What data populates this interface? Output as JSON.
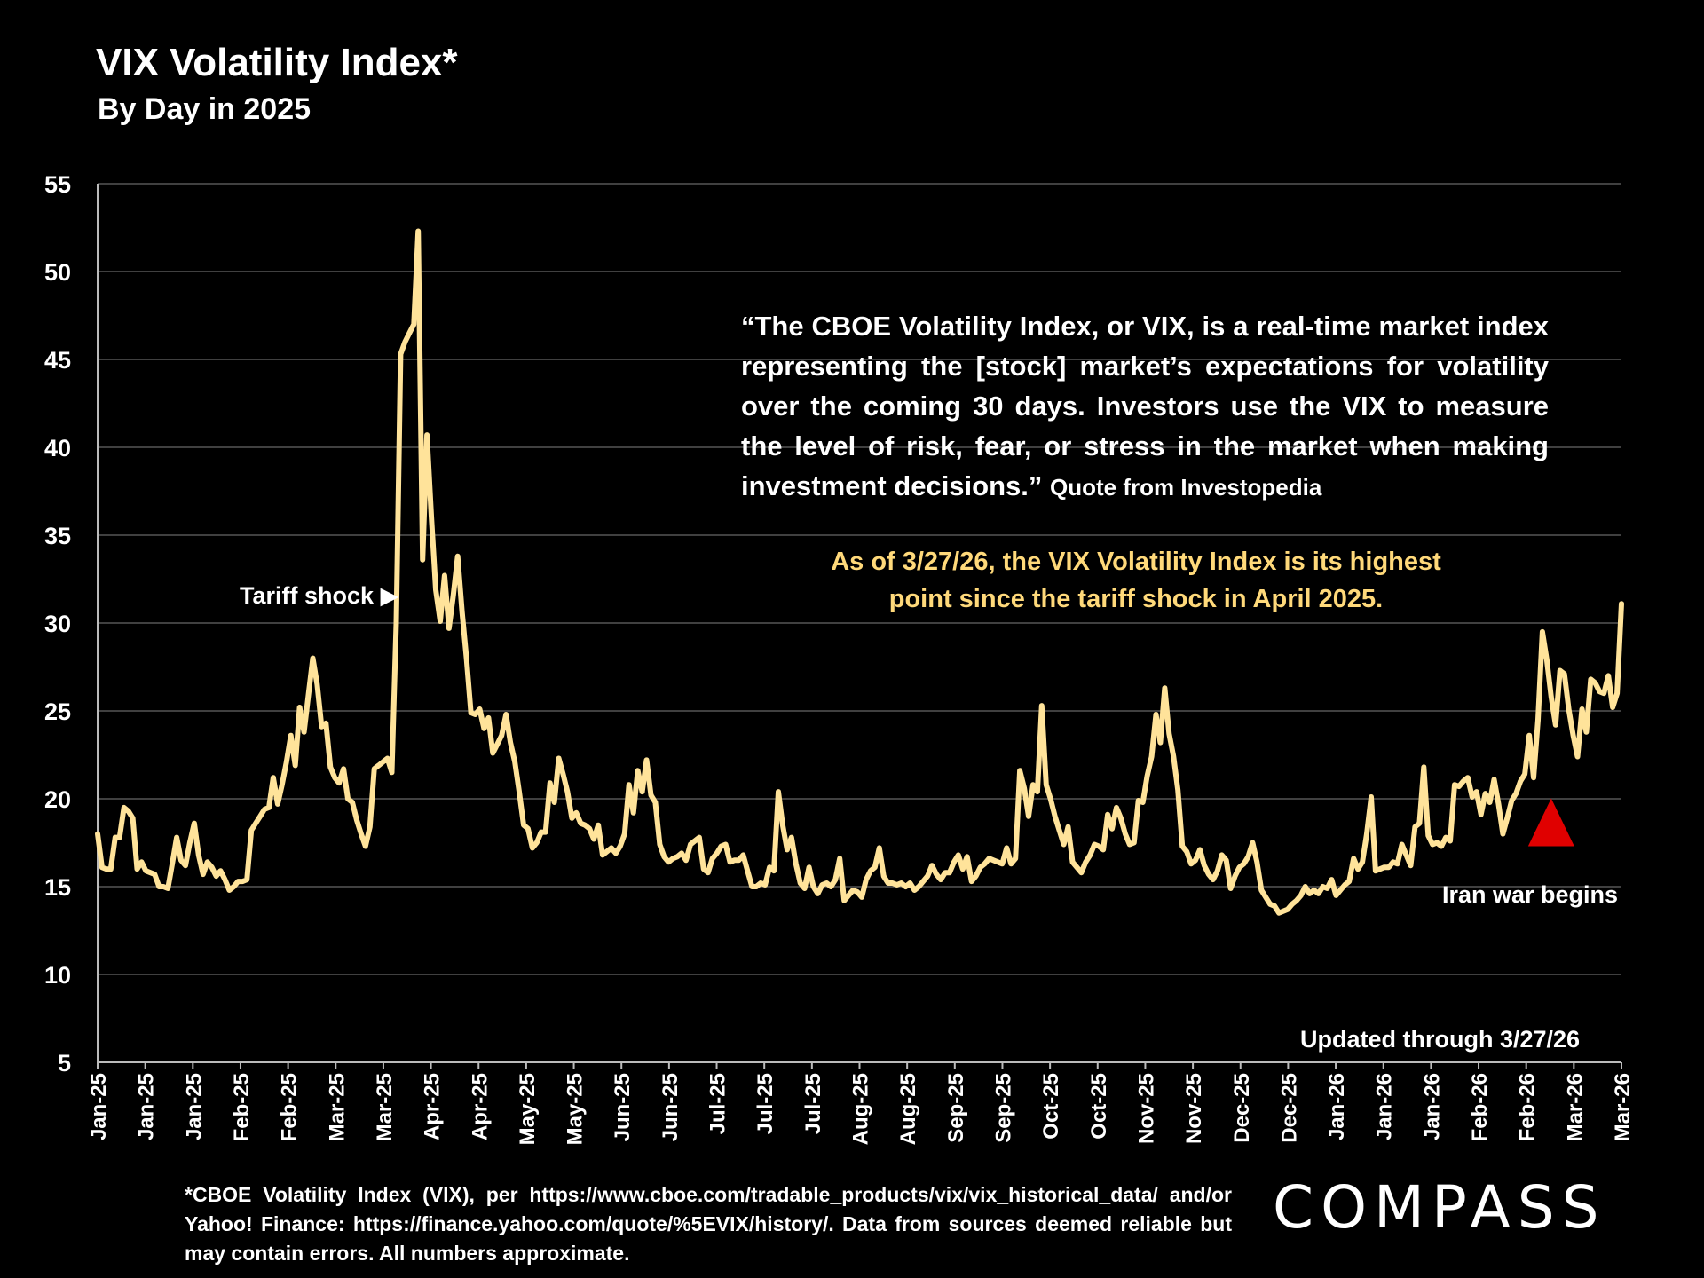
{
  "header": {
    "title": "VIX Volatility Index*",
    "subtitle": "By Day in 2025"
  },
  "quote": {
    "text": "“The CBOE Volatility Index, or VIX, is a real-time market index representing the [stock] market’s expectations for volatility over the coming 30 days. Investors use the VIX to measure the level of risk, fear, or stress in the market when making investment decisions.”",
    "source": "Quote from Investopedia"
  },
  "highlight": {
    "line1": "As of 3/27/26, the VIX Volatility Index is its highest",
    "line2": "point since the tariff shock in April 2025."
  },
  "annotations": {
    "tariff_shock": "Tariff shock ▶",
    "iran_war": "Iran war begins"
  },
  "updated": "Updated through 3/27/26",
  "footnote": "*CBOE Volatility Index (VIX), per https://www.cboe.com/tradable_products/vix/vix_historical_data/ and/or Yahoo! Finance: https://finance.yahoo.com/quote/%5EVIX/history/. Data from sources deemed reliable but may contain errors. All numbers approximate.",
  "logo": "COMPASS",
  "colors": {
    "line": "#ffe39a",
    "marker": "#e00000",
    "grid": "#555555",
    "highlight": "#ffd97a"
  },
  "chart_data": {
    "type": "line",
    "title": "VIX Volatility Index*",
    "subtitle": "By Day in 2025",
    "ylim": [
      5,
      55
    ],
    "yticks": [
      5,
      10,
      15,
      20,
      25,
      30,
      35,
      40,
      45,
      50,
      55
    ],
    "grid": true,
    "x_tick_labels": [
      "Jan-25",
      "Jan-25",
      "Jan-25",
      "Feb-25",
      "Feb-25",
      "Mar-25",
      "Mar-25",
      "Apr-25",
      "Apr-25",
      "May-25",
      "May-25",
      "Jun-25",
      "Jun-25",
      "Jul-25",
      "Jul-25",
      "Jul-25",
      "Aug-25",
      "Aug-25",
      "Sep-25",
      "Sep-25",
      "Oct-25",
      "Oct-25",
      "Nov-25",
      "Nov-25",
      "Dec-25",
      "Dec-25",
      "Jan-26",
      "Jan-26",
      "Jan-26",
      "Feb-26",
      "Feb-26",
      "Mar-26",
      "Mar-26"
    ],
    "series": [
      {
        "values": [
          18.0,
          16.1,
          16.0,
          16.0,
          17.8,
          17.8,
          19.5,
          19.3,
          18.9,
          16.0,
          16.4,
          15.9,
          15.8,
          15.7,
          15.0,
          15.0,
          14.9,
          16.3,
          17.8,
          16.5,
          16.2,
          17.5,
          18.6,
          16.8,
          15.7,
          16.4,
          16.1,
          15.6,
          15.9,
          15.4,
          14.8,
          15.0,
          15.3,
          15.3,
          15.4,
          18.2,
          18.6,
          19.0,
          19.4,
          19.5,
          21.2,
          19.7,
          20.8,
          22.1,
          23.6,
          21.9,
          25.2,
          23.8,
          25.9,
          28.0,
          26.5,
          24.1,
          24.3,
          21.8,
          21.2,
          20.9,
          21.7,
          20.0,
          19.8,
          18.8,
          18.0,
          17.3,
          18.4,
          21.7,
          21.9,
          22.1,
          22.3,
          21.5,
          30.0,
          45.3,
          46.0,
          46.5,
          47.0,
          52.3,
          33.6,
          40.7,
          36.0,
          31.9,
          30.1,
          32.7,
          29.7,
          31.6,
          33.8,
          30.6,
          28.0,
          24.9,
          24.8,
          25.1,
          24.0,
          24.6,
          22.6,
          23.1,
          23.6,
          24.8,
          23.2,
          22.1,
          20.4,
          18.5,
          18.3,
          17.2,
          17.5,
          18.1,
          18.1,
          20.9,
          19.8,
          22.3,
          21.4,
          20.4,
          18.9,
          19.2,
          18.6,
          18.5,
          18.3,
          17.7,
          18.5,
          16.8,
          17.0,
          17.2,
          16.9,
          17.3,
          18.0,
          20.8,
          19.2,
          21.6,
          20.4,
          22.2,
          20.2,
          19.8,
          17.4,
          16.7,
          16.4,
          16.6,
          16.7,
          16.9,
          16.5,
          17.4,
          17.6,
          17.8,
          16.0,
          15.8,
          16.6,
          16.9,
          17.3,
          17.4,
          16.4,
          16.5,
          16.5,
          16.8,
          15.9,
          15.0,
          15.0,
          15.2,
          15.1,
          16.1,
          15.9,
          20.4,
          18.5,
          17.1,
          17.8,
          16.3,
          15.2,
          14.9,
          16.1,
          15.0,
          14.6,
          15.1,
          15.2,
          15.0,
          15.4,
          16.6,
          14.2,
          14.5,
          14.8,
          14.7,
          14.4,
          15.4,
          15.9,
          16.1,
          17.2,
          15.6,
          15.2,
          15.2,
          15.1,
          15.2,
          15.0,
          15.2,
          14.8,
          15.0,
          15.3,
          15.6,
          16.2,
          15.7,
          15.4,
          15.8,
          15.8,
          16.4,
          16.8,
          16.0,
          16.7,
          15.3,
          15.6,
          16.1,
          16.3,
          16.6,
          16.5,
          16.4,
          16.3,
          17.2,
          16.3,
          16.6,
          21.6,
          20.6,
          19.0,
          20.8,
          20.4,
          25.3,
          20.8,
          20.0,
          19.0,
          18.2,
          17.4,
          18.4,
          16.4,
          16.1,
          15.8,
          16.4,
          16.8,
          17.4,
          17.3,
          17.1,
          19.1,
          18.3,
          19.5,
          18.9,
          18.0,
          17.4,
          17.5,
          19.9,
          19.8,
          21.3,
          22.4,
          24.8,
          23.2,
          26.3,
          23.7,
          22.4,
          20.5,
          17.3,
          17.0,
          16.3,
          16.5,
          17.1,
          16.2,
          15.7,
          15.4,
          15.9,
          16.8,
          16.5,
          14.9,
          15.6,
          16.1,
          16.3,
          16.7,
          17.5,
          16.4,
          14.8,
          14.4,
          14.0,
          13.9,
          13.5,
          13.6,
          13.7,
          14.0,
          14.2,
          14.5,
          15.0,
          14.6,
          14.8,
          14.6,
          15.0,
          14.9,
          15.4,
          14.5,
          14.8,
          15.1,
          15.3,
          16.6,
          16.0,
          16.4,
          18.0,
          20.1,
          15.9,
          16.0,
          16.1,
          16.1,
          16.4,
          16.3,
          17.4,
          16.8,
          16.2,
          18.4,
          18.6,
          21.8,
          17.9,
          17.4,
          17.5,
          17.3,
          17.8,
          17.6,
          20.8,
          20.7,
          21.0,
          21.2,
          20.1,
          20.4,
          19.1,
          20.3,
          19.8,
          21.1,
          19.7,
          18.0,
          18.9,
          19.9,
          20.3,
          21.0,
          21.4,
          23.6,
          21.2,
          24.5,
          29.5,
          27.9,
          25.8,
          24.2,
          27.3,
          27.1,
          25.1,
          23.6,
          22.4,
          25.1,
          23.8,
          26.8,
          26.6,
          26.1,
          26.0,
          27.0,
          25.2,
          26.0,
          31.1
        ]
      }
    ],
    "markers": [
      {
        "label": "Tariff shock",
        "type": "arrow",
        "index": 69
      },
      {
        "label": "Iran war begins",
        "type": "triangle",
        "index": 331,
        "y": 17.2
      }
    ]
  }
}
